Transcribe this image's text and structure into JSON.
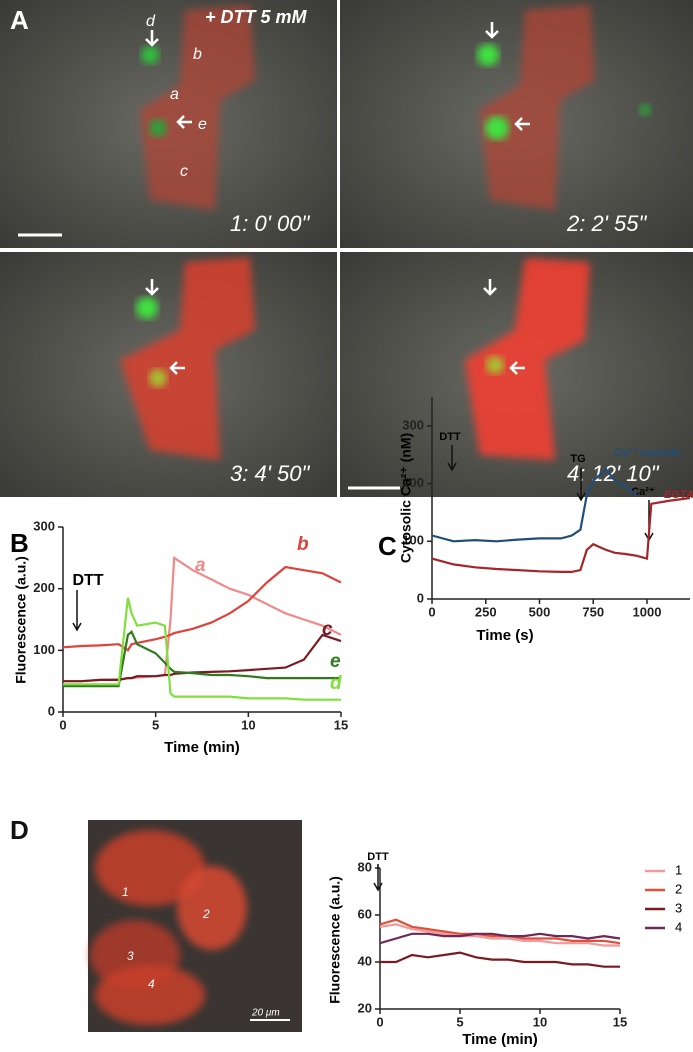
{
  "panel_a": {
    "label": "A",
    "treatment": "+ DTT 5 mM",
    "cells": [
      "d",
      "b",
      "a",
      "e",
      "c"
    ],
    "frames": [
      "1: 0' 00\"",
      "2: 2' 55\"",
      "3: 4' 50\"",
      "4: 12' 10\""
    ]
  },
  "panel_d_image": {
    "label": "D",
    "cells": [
      "1",
      "2",
      "3",
      "4"
    ],
    "scale_bar": "20 μm"
  },
  "chart_data": [
    {
      "type": "line",
      "panel": "B",
      "x_label": "Time (min)",
      "y_label": "Fluorescence (a.u.)",
      "annotations": [
        "DTT"
      ],
      "x": [
        0,
        1,
        2,
        3,
        3.5,
        3.7,
        4,
        5,
        5.5,
        5.8,
        6,
        7,
        8,
        9,
        10,
        11,
        12,
        13,
        14,
        15
      ],
      "xlim": [
        0,
        15
      ],
      "xticks": [
        0,
        5,
        10,
        15
      ],
      "ylim": [
        0,
        300
      ],
      "yticks": [
        0,
        100,
        200,
        300
      ],
      "series": [
        {
          "name": "a",
          "color": "#f08a8a",
          "values": [
            50,
            50,
            52,
            53,
            55,
            55,
            56,
            58,
            60,
            150,
            250,
            230,
            215,
            200,
            190,
            175,
            160,
            150,
            140,
            125
          ]
        },
        {
          "name": "b",
          "color": "#e0423a",
          "values": [
            105,
            107,
            108,
            110,
            100,
            110,
            112,
            118,
            122,
            125,
            128,
            135,
            145,
            160,
            180,
            210,
            235,
            230,
            225,
            210
          ]
        },
        {
          "name": "c",
          "color": "#7a1a22",
          "values": [
            50,
            50,
            52,
            52,
            55,
            55,
            58,
            58,
            60,
            60,
            62,
            64,
            65,
            66,
            68,
            70,
            72,
            85,
            125,
            115
          ]
        },
        {
          "name": "e",
          "color": "#2f7a1f",
          "values": [
            42,
            42,
            42,
            42,
            125,
            130,
            110,
            95,
            80,
            70,
            65,
            63,
            60,
            60,
            58,
            55,
            55,
            55,
            55,
            55
          ]
        },
        {
          "name": "d",
          "color": "#7fe03c",
          "values": [
            45,
            45,
            45,
            45,
            185,
            160,
            140,
            145,
            140,
            30,
            25,
            25,
            25,
            25,
            22,
            22,
            22,
            20,
            20,
            20
          ]
        }
      ]
    },
    {
      "type": "line",
      "panel": "C",
      "x_label": "Time (s)",
      "y_label": "Cytosolic Ca²⁺ (nM)",
      "annotations": [
        "DTT",
        "TG",
        "Ca²⁺"
      ],
      "x": [
        0,
        100,
        200,
        300,
        400,
        500,
        600,
        650,
        690,
        720,
        750,
        780,
        810,
        850,
        900,
        950,
        1000,
        1020,
        1100,
        1200
      ],
      "xlim": [
        0,
        1200
      ],
      "xticks": [
        0,
        250,
        500,
        750,
        1000
      ],
      "ylim": [
        0,
        350
      ],
      "yticks": [
        0,
        100,
        200,
        300
      ],
      "series": [
        {
          "name": "Ca²⁺ outside",
          "color": "#1f4e79",
          "values": [
            110,
            100,
            102,
            100,
            103,
            105,
            105,
            110,
            120,
            180,
            205,
            215,
            225,
            205,
            195,
            180,
            null,
            null,
            null,
            null
          ]
        },
        {
          "name": "EGTA",
          "color": "#a3262a",
          "values": [
            70,
            60,
            55,
            52,
            50,
            48,
            47,
            47,
            50,
            85,
            95,
            90,
            85,
            80,
            78,
            75,
            70,
            165,
            170,
            175
          ]
        }
      ]
    },
    {
      "type": "line",
      "panel": "D",
      "x_label": "Time (min)",
      "y_label": "Fluorescence (a.u.)",
      "annotations": [
        "DTT"
      ],
      "x": [
        0,
        1,
        2,
        3,
        4,
        5,
        6,
        7,
        8,
        9,
        10,
        11,
        12,
        13,
        14,
        15
      ],
      "xlim": [
        0,
        15
      ],
      "xticks": [
        0,
        5,
        10,
        15
      ],
      "ylim": [
        20,
        80
      ],
      "yticks": [
        20,
        40,
        60,
        80
      ],
      "series": [
        {
          "name": "1",
          "color": "#f29a9a",
          "values": [
            55,
            56,
            54,
            53,
            52,
            51,
            51,
            50,
            50,
            49,
            49,
            48,
            48,
            48,
            47,
            47
          ]
        },
        {
          "name": "2",
          "color": "#e0503a",
          "values": [
            56,
            58,
            55,
            54,
            53,
            52,
            52,
            51,
            51,
            50,
            50,
            50,
            49,
            49,
            49,
            48
          ]
        },
        {
          "name": "3",
          "color": "#7a1a22",
          "values": [
            40,
            40,
            43,
            42,
            43,
            44,
            42,
            41,
            41,
            40,
            40,
            40,
            39,
            39,
            38,
            38
          ]
        },
        {
          "name": "4",
          "color": "#6b2a5a",
          "values": [
            48,
            50,
            52,
            52,
            51,
            51,
            52,
            52,
            51,
            51,
            52,
            51,
            51,
            50,
            51,
            50
          ]
        }
      ]
    }
  ]
}
